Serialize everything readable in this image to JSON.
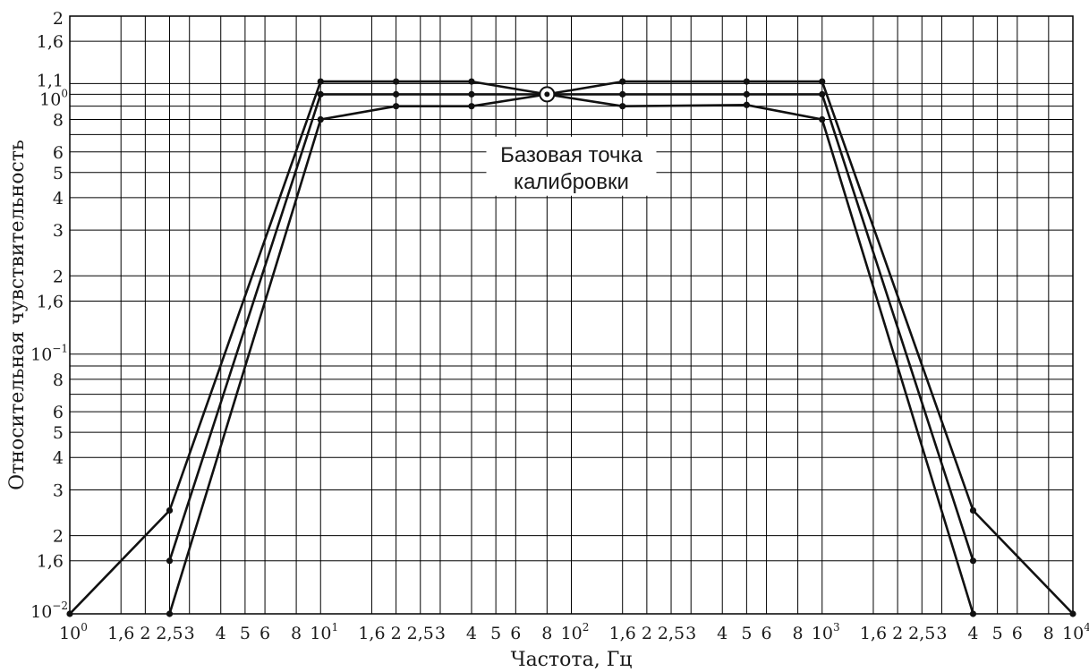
{
  "chart_data": {
    "type": "line",
    "title": "",
    "xlabel": "Частота, Гц",
    "ylabel": "Относительная чувствительность",
    "xscale": "log",
    "yscale": "log",
    "xlim": [
      1,
      10000
    ],
    "ylim": [
      0.01,
      2
    ],
    "grid": true,
    "legend": "none",
    "x_tick_labels": [
      {
        "value": 1,
        "base": "10",
        "exp": "0"
      },
      {
        "value": 1.6,
        "base": "1,6"
      },
      {
        "value": 2,
        "base": "2"
      },
      {
        "value": 2.5,
        "base": "2,5"
      },
      {
        "value": 3,
        "base": "3"
      },
      {
        "value": 4,
        "base": "4"
      },
      {
        "value": 5,
        "base": "5"
      },
      {
        "value": 6,
        "base": "6"
      },
      {
        "value": 8,
        "base": "8"
      },
      {
        "value": 10,
        "base": "10",
        "exp": "1"
      },
      {
        "value": 16,
        "base": "1,6"
      },
      {
        "value": 20,
        "base": "2"
      },
      {
        "value": 25,
        "base": "2,5"
      },
      {
        "value": 30,
        "base": "3"
      },
      {
        "value": 40,
        "base": "4"
      },
      {
        "value": 50,
        "base": "5"
      },
      {
        "value": 60,
        "base": "6"
      },
      {
        "value": 80,
        "base": "8"
      },
      {
        "value": 100,
        "base": "10",
        "exp": "2"
      },
      {
        "value": 160,
        "base": "1,6"
      },
      {
        "value": 200,
        "base": "2"
      },
      {
        "value": 250,
        "base": "2,5"
      },
      {
        "value": 300,
        "base": "3"
      },
      {
        "value": 400,
        "base": "4"
      },
      {
        "value": 500,
        "base": "5"
      },
      {
        "value": 600,
        "base": "6"
      },
      {
        "value": 800,
        "base": "8"
      },
      {
        "value": 1000,
        "base": "10",
        "exp": "3"
      },
      {
        "value": 1600,
        "base": "1,6"
      },
      {
        "value": 2000,
        "base": "2"
      },
      {
        "value": 2500,
        "base": "2,5"
      },
      {
        "value": 3000,
        "base": "3"
      },
      {
        "value": 4000,
        "base": "4"
      },
      {
        "value": 5000,
        "base": "5"
      },
      {
        "value": 6000,
        "base": "6"
      },
      {
        "value": 8000,
        "base": "8"
      },
      {
        "value": 10000,
        "base": "10",
        "exp": "4"
      }
    ],
    "y_tick_labels": [
      {
        "value": 2,
        "base": "2"
      },
      {
        "value": 1.6,
        "base": "1,6"
      },
      {
        "value": 1.1,
        "base": "1,1"
      },
      {
        "value": 1,
        "base": "10",
        "exp": "0"
      },
      {
        "value": 0.8,
        "base": "8"
      },
      {
        "value": 0.6,
        "base": "6"
      },
      {
        "value": 0.5,
        "base": "5"
      },
      {
        "value": 0.4,
        "base": "4"
      },
      {
        "value": 0.3,
        "base": "3"
      },
      {
        "value": 0.2,
        "base": "2"
      },
      {
        "value": 0.16,
        "base": "1,6"
      },
      {
        "value": 0.1,
        "base": "10",
        "exp": "−1"
      },
      {
        "value": 0.08,
        "base": "8"
      },
      {
        "value": 0.06,
        "base": "6"
      },
      {
        "value": 0.05,
        "base": "5"
      },
      {
        "value": 0.04,
        "base": "4"
      },
      {
        "value": 0.03,
        "base": "3"
      },
      {
        "value": 0.02,
        "base": "2"
      },
      {
        "value": 0.016,
        "base": "1,6"
      },
      {
        "value": 0.01,
        "base": "10",
        "exp": "−2"
      }
    ],
    "grid_y_values": [
      2,
      1.6,
      1.1,
      1.0,
      0.9,
      0.8,
      0.7,
      0.6,
      0.5,
      0.4,
      0.3,
      0.2,
      0.16,
      0.1,
      0.09,
      0.08,
      0.07,
      0.06,
      0.05,
      0.04,
      0.03,
      0.02,
      0.016,
      0.01
    ],
    "grid_x_values": [
      1,
      1.6,
      2,
      2.5,
      3,
      4,
      5,
      6,
      8,
      10,
      16,
      20,
      25,
      30,
      40,
      50,
      60,
      80,
      100,
      160,
      200,
      250,
      300,
      400,
      500,
      600,
      800,
      1000,
      1600,
      2000,
      2500,
      3000,
      4000,
      5000,
      6000,
      8000,
      10000
    ],
    "series": [
      {
        "points": [
          [
            1,
            0.01
          ],
          [
            2.5,
            0.025
          ],
          [
            10,
            1.12
          ],
          [
            20,
            1.12
          ],
          [
            40,
            1.12
          ],
          [
            80,
            1.0
          ],
          [
            160,
            1.12
          ],
          [
            500,
            1.12
          ],
          [
            1000,
            1.12
          ],
          [
            4000,
            0.025
          ],
          [
            10000,
            0.01
          ]
        ]
      },
      {
        "points": [
          [
            2.5,
            0.016
          ],
          [
            10,
            1.0
          ],
          [
            20,
            1.0
          ],
          [
            40,
            1.0
          ],
          [
            80,
            1.0
          ],
          [
            160,
            1.0
          ],
          [
            500,
            1.0
          ],
          [
            1000,
            1.0
          ],
          [
            4000,
            0.016
          ]
        ]
      },
      {
        "points": [
          [
            2.5,
            0.01
          ],
          [
            10,
            0.8
          ],
          [
            20,
            0.9
          ],
          [
            40,
            0.9
          ],
          [
            80,
            1.0
          ],
          [
            160,
            0.9
          ],
          [
            500,
            0.91
          ],
          [
            1000,
            0.8
          ],
          [
            4000,
            0.01
          ]
        ]
      }
    ],
    "reference_point": {
      "x": 80,
      "y": 1.0
    },
    "annotation": {
      "lines": [
        "Базовая точка",
        "калибровки"
      ],
      "x": 100,
      "y": 0.55
    }
  }
}
